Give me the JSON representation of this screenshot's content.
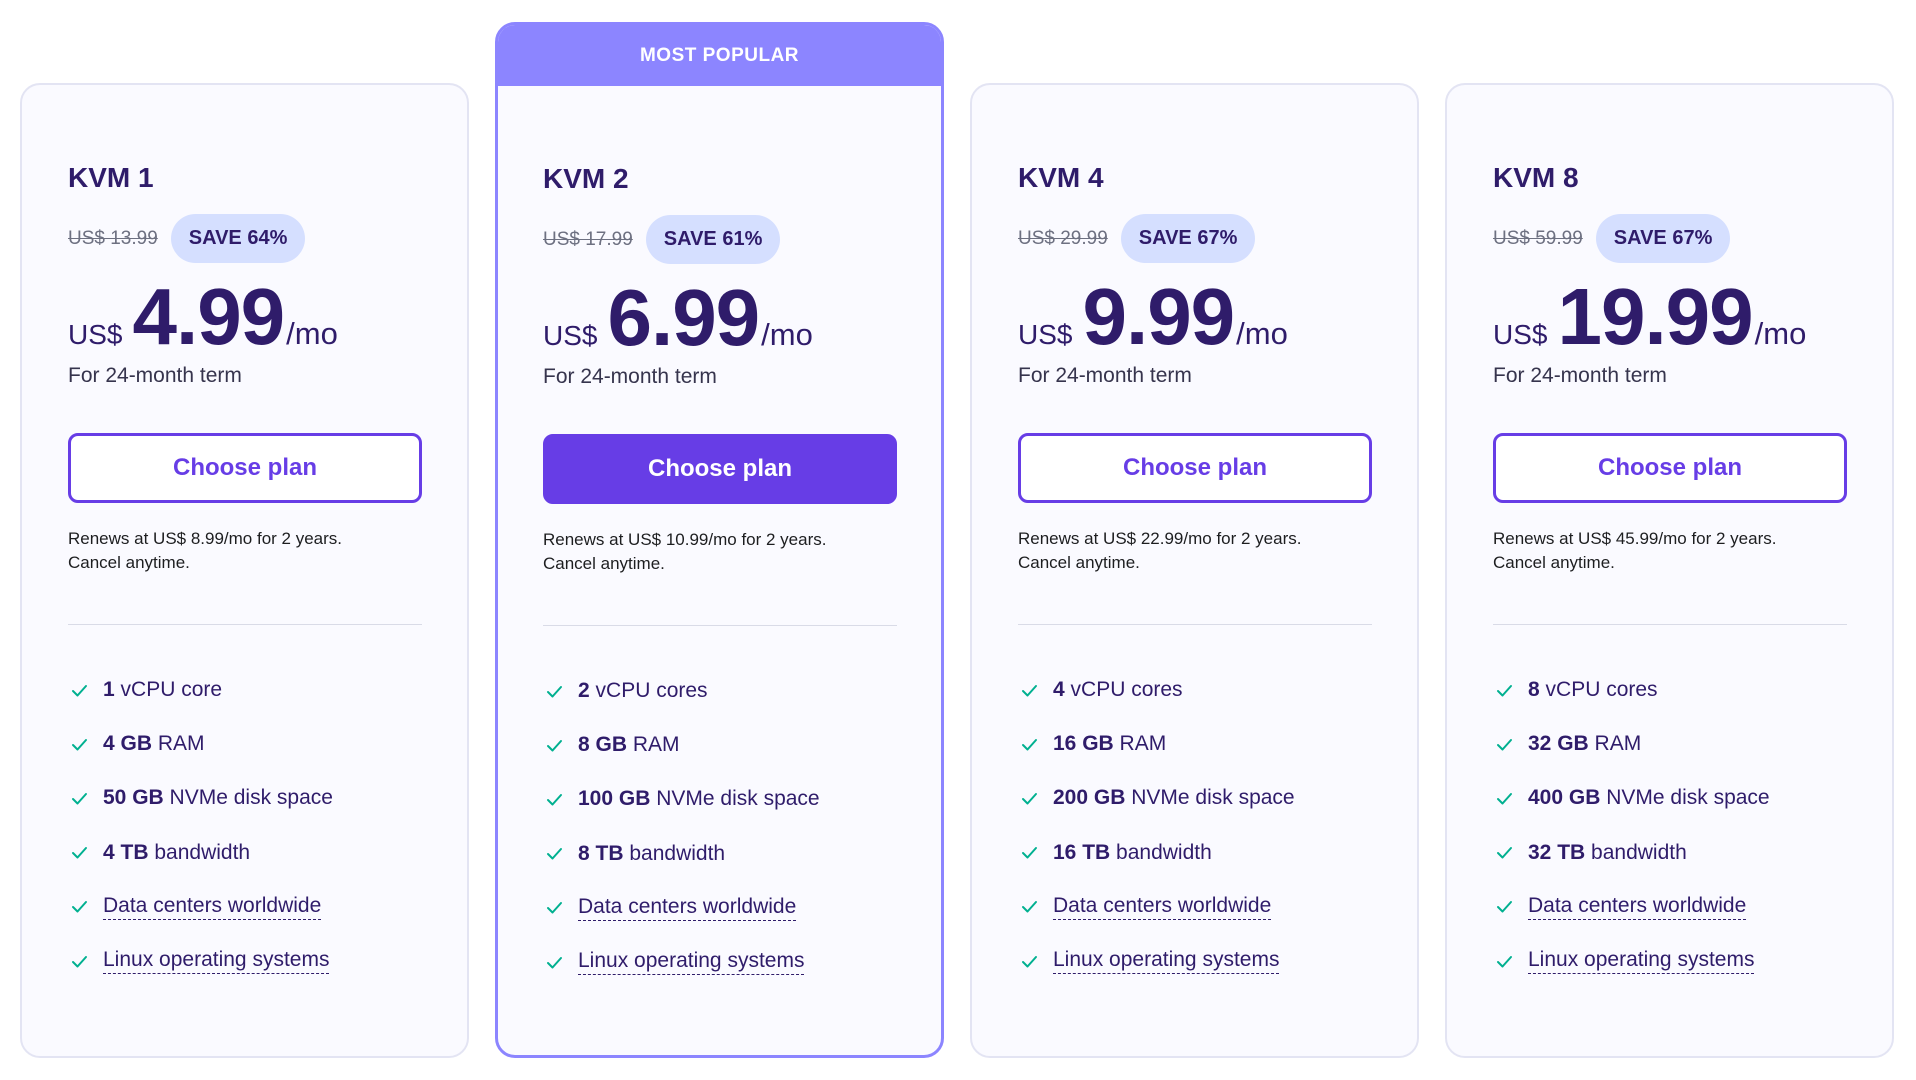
{
  "colors": {
    "accent": "#673de6",
    "popular": "#8c85ff",
    "heading": "#2f1c6a",
    "check": "#00b090",
    "badge": "#d5dfff"
  },
  "feature_icon": "check-icon",
  "plans": [
    {
      "name": "KVM 1",
      "original_price": "US$ 13.99",
      "discount": "SAVE 64%",
      "currency": "US$",
      "price": "4.99",
      "period": "/mo",
      "term": "For 24-month term",
      "cta": "Choose plan",
      "renews": "Renews at US$ 8.99/mo for 2 years.",
      "cancel": "Cancel anytime.",
      "features": [
        {
          "value": "1",
          "label": "vCPU core"
        },
        {
          "value": "4 GB",
          "label": "RAM"
        },
        {
          "value": "50 GB",
          "label": "NVMe disk space"
        },
        {
          "value": "4 TB",
          "label": "bandwidth"
        },
        {
          "label": "Data centers worldwide"
        },
        {
          "label": "Linux operating systems"
        }
      ]
    },
    {
      "ribbon": "MOST POPULAR",
      "name": "KVM 2",
      "original_price": "US$ 17.99",
      "discount": "SAVE 61%",
      "currency": "US$",
      "price": "6.99",
      "period": "/mo",
      "term": "For 24-month term",
      "cta": "Choose plan",
      "renews": "Renews at US$ 10.99/mo for 2 years.",
      "cancel": "Cancel anytime.",
      "features": [
        {
          "value": "2",
          "label": "vCPU cores"
        },
        {
          "value": "8 GB",
          "label": "RAM"
        },
        {
          "value": "100 GB",
          "label": "NVMe disk space"
        },
        {
          "value": "8 TB",
          "label": "bandwidth"
        },
        {
          "label": "Data centers worldwide"
        },
        {
          "label": "Linux operating systems"
        }
      ]
    },
    {
      "name": "KVM 4",
      "original_price": "US$ 29.99",
      "discount": "SAVE 67%",
      "currency": "US$",
      "price": "9.99",
      "period": "/mo",
      "term": "For 24-month term",
      "cta": "Choose plan",
      "renews": "Renews at US$ 22.99/mo for 2 years.",
      "cancel": "Cancel anytime.",
      "features": [
        {
          "value": "4",
          "label": "vCPU cores"
        },
        {
          "value": "16 GB",
          "label": "RAM"
        },
        {
          "value": "200 GB",
          "label": "NVMe disk space"
        },
        {
          "value": "16 TB",
          "label": "bandwidth"
        },
        {
          "label": "Data centers worldwide"
        },
        {
          "label": "Linux operating systems"
        }
      ]
    },
    {
      "name": "KVM 8",
      "original_price": "US$ 59.99",
      "discount": "SAVE 67%",
      "currency": "US$",
      "price": "19.99",
      "period": "/mo",
      "term": "For 24-month term",
      "cta": "Choose plan",
      "renews": "Renews at US$ 45.99/mo for 2 years.",
      "cancel": "Cancel anytime.",
      "features": [
        {
          "value": "8",
          "label": "vCPU cores"
        },
        {
          "value": "32 GB",
          "label": "RAM"
        },
        {
          "value": "400 GB",
          "label": "NVMe disk space"
        },
        {
          "value": "32 TB",
          "label": "bandwidth"
        },
        {
          "label": "Data centers worldwide"
        },
        {
          "label": "Linux operating systems"
        }
      ]
    }
  ]
}
